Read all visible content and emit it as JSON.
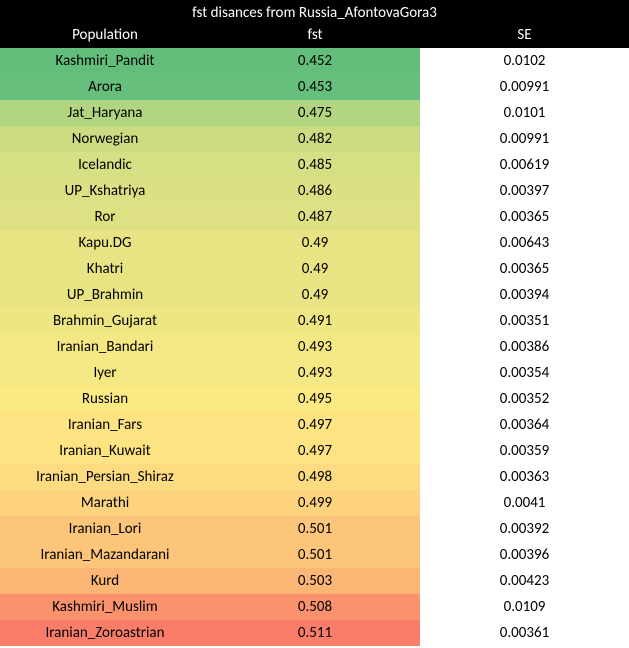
{
  "title": "fst disances from Russia_AfontovaGora3",
  "columns": {
    "population": "Population",
    "fst": "fst",
    "se": "SE"
  },
  "se_background": "#ffffff",
  "rows": [
    {
      "population": "Kashmiri_Pandit",
      "fst": "0.452",
      "se": "0.0102",
      "color": "#63be7b"
    },
    {
      "population": "Arora",
      "fst": "0.453",
      "se": "0.00991",
      "color": "#66bf7c"
    },
    {
      "population": "Jat_Haryana",
      "fst": "0.475",
      "se": "0.0101",
      "color": "#b1d580"
    },
    {
      "population": "Norwegian",
      "fst": "0.482",
      "se": "0.00991",
      "color": "#cbdc82"
    },
    {
      "population": "Icelandic",
      "fst": "0.485",
      "se": "0.00619",
      "color": "#d5df83"
    },
    {
      "population": "UP_Kshatriya",
      "fst": "0.486",
      "se": "0.00397",
      "color": "#dae083"
    },
    {
      "population": "Ror",
      "fst": "0.487",
      "se": "0.00365",
      "color": "#dde183"
    },
    {
      "population": "Kapu.DG",
      "fst": "0.49",
      "se": "0.00643",
      "color": "#e8e483"
    },
    {
      "population": "Khatri",
      "fst": "0.49",
      "se": "0.00365",
      "color": "#e8e483"
    },
    {
      "population": "UP_Brahmin",
      "fst": "0.49",
      "se": "0.00394",
      "color": "#e8e483"
    },
    {
      "population": "Brahmin_Gujarat",
      "fst": "0.491",
      "se": "0.00351",
      "color": "#ede683"
    },
    {
      "population": "Iranian_Bandari",
      "fst": "0.493",
      "se": "0.00386",
      "color": "#f4e884"
    },
    {
      "population": "Iyer",
      "fst": "0.493",
      "se": "0.00354",
      "color": "#f4e884"
    },
    {
      "population": "Russian",
      "fst": "0.495",
      "se": "0.00352",
      "color": "#fbe984"
    },
    {
      "population": "Iranian_Fars",
      "fst": "0.497",
      "se": "0.00364",
      "color": "#fee382"
    },
    {
      "population": "Iranian_Kuwait",
      "fst": "0.497",
      "se": "0.00359",
      "color": "#fee382"
    },
    {
      "population": "Iranian_Persian_Shiraz",
      "fst": "0.498",
      "se": "0.00363",
      "color": "#fddb80"
    },
    {
      "population": "Marathi",
      "fst": "0.499",
      "se": "0.0041",
      "color": "#fdd37e"
    },
    {
      "population": "Iranian_Lori",
      "fst": "0.501",
      "se": "0.00392",
      "color": "#fcc57a"
    },
    {
      "population": "Iranian_Mazandarani",
      "fst": "0.501",
      "se": "0.00396",
      "color": "#fcc57a"
    },
    {
      "population": "Kurd",
      "fst": "0.503",
      "se": "0.00423",
      "color": "#fbb676"
    },
    {
      "population": "Kashmiri_Muslim",
      "fst": "0.508",
      "se": "0.0109",
      "color": "#fa926d"
    },
    {
      "population": "Iranian_Zoroastrian",
      "fst": "0.511",
      "se": "0.00361",
      "color": "#f97d68"
    }
  ]
}
